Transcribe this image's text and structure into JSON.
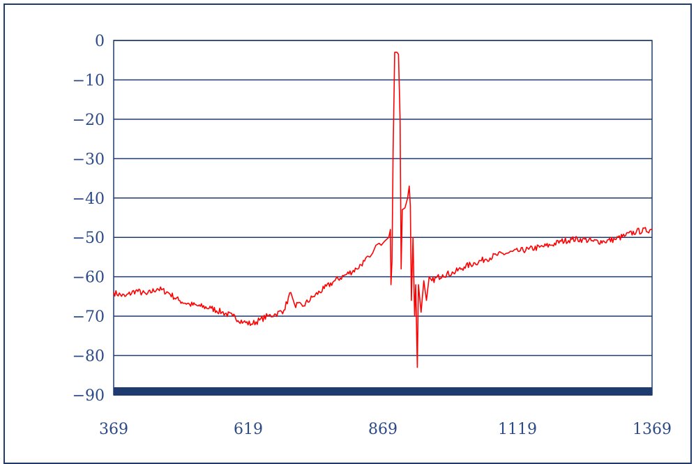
{
  "chart_data": {
    "type": "line",
    "title": "",
    "xlabel": "",
    "ylabel": "",
    "xlim": [
      369,
      1369
    ],
    "ylim": [
      -90,
      0
    ],
    "x_ticks": [
      "369",
      "619",
      "869",
      "1119",
      "1369"
    ],
    "y_ticks": [
      "0",
      "-10",
      "-20",
      "-30",
      "-40",
      "-50",
      "-60",
      "-70",
      "-80",
      "-90"
    ],
    "grid": "horizontal",
    "legend": "none",
    "colors": {
      "series": "#ff0000",
      "axis": "#1f3a6e",
      "grid": "#1f3a6e",
      "tick_text": "#2b4a86"
    },
    "series": [
      {
        "values": [
          [
            369,
            -64
          ],
          [
            390,
            -65
          ],
          [
            410,
            -63.5
          ],
          [
            430,
            -64.5
          ],
          [
            450,
            -63
          ],
          [
            470,
            -64
          ],
          [
            490,
            -66
          ],
          [
            510,
            -67
          ],
          [
            530,
            -67.5
          ],
          [
            550,
            -68
          ],
          [
            570,
            -69
          ],
          [
            590,
            -70
          ],
          [
            610,
            -71.5
          ],
          [
            625,
            -72
          ],
          [
            640,
            -71
          ],
          [
            655,
            -70
          ],
          [
            670,
            -69.5
          ],
          [
            685,
            -68.5
          ],
          [
            698,
            -64
          ],
          [
            705,
            -67
          ],
          [
            720,
            -67.5
          ],
          [
            740,
            -65
          ],
          [
            760,
            -63
          ],
          [
            780,
            -61
          ],
          [
            800,
            -59.5
          ],
          [
            820,
            -58
          ],
          [
            835,
            -56
          ],
          [
            845,
            -55
          ],
          [
            850,
            -54
          ],
          [
            856,
            -52
          ],
          [
            862,
            -51.5
          ],
          [
            866,
            -52
          ],
          [
            872,
            -51
          ],
          [
            880,
            -50
          ],
          [
            883,
            -48
          ],
          [
            884,
            -62
          ],
          [
            886,
            -56
          ],
          [
            888,
            -28
          ],
          [
            891,
            -3
          ],
          [
            895,
            -3
          ],
          [
            898,
            -3.5
          ],
          [
            901,
            -20
          ],
          [
            903,
            -58
          ],
          [
            905,
            -43
          ],
          [
            910,
            -42.5
          ],
          [
            915,
            -40
          ],
          [
            918,
            -37
          ],
          [
            920,
            -42
          ],
          [
            922,
            -66
          ],
          [
            925,
            -50
          ],
          [
            928,
            -70
          ],
          [
            930,
            -62
          ],
          [
            933,
            -83
          ],
          [
            935,
            -62
          ],
          [
            940,
            -69
          ],
          [
            945,
            -61
          ],
          [
            950,
            -66
          ],
          [
            955,
            -60
          ],
          [
            960,
            -61
          ],
          [
            980,
            -59.5
          ],
          [
            1000,
            -59
          ],
          [
            1020,
            -57.5
          ],
          [
            1040,
            -56.5
          ],
          [
            1060,
            -55.5
          ],
          [
            1080,
            -54.5
          ],
          [
            1100,
            -54
          ],
          [
            1120,
            -53.5
          ],
          [
            1140,
            -53
          ],
          [
            1160,
            -52.5
          ],
          [
            1180,
            -52
          ],
          [
            1200,
            -51
          ],
          [
            1220,
            -50.5
          ],
          [
            1240,
            -50.5
          ],
          [
            1260,
            -51
          ],
          [
            1280,
            -51
          ],
          [
            1300,
            -50.5
          ],
          [
            1320,
            -49.5
          ],
          [
            1340,
            -48.5
          ],
          [
            1369,
            -48
          ]
        ]
      }
    ]
  }
}
